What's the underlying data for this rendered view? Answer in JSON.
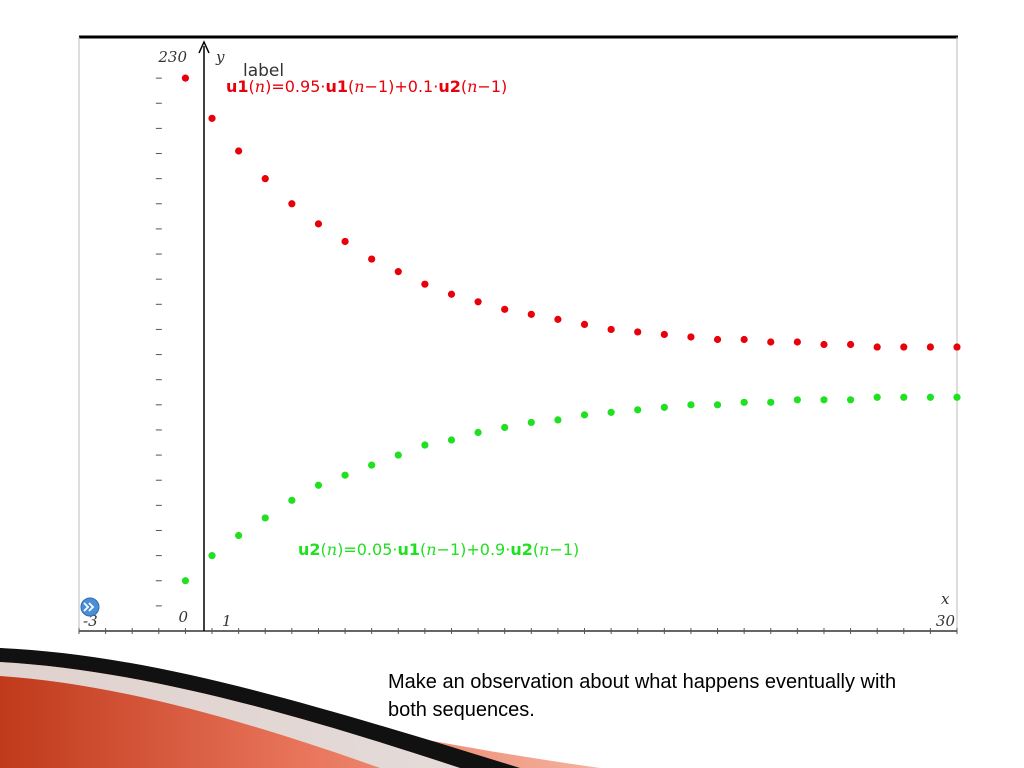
{
  "chart_data": {
    "type": "scatter",
    "x_range": [
      -3,
      30
    ],
    "y_range": [
      0,
      230
    ],
    "x_axis_name": "x",
    "y_axis_name": "y",
    "x_min_label": "-3",
    "x_max_label": "30",
    "y_min_label": "0",
    "y_max_label": "230",
    "x_tick_at_1": "1",
    "series": [
      {
        "label_parts": [
          "u1",
          "(",
          "n",
          ")=0.95·",
          "u1",
          "(",
          "n",
          "−1)+0.1·",
          "u2",
          "(",
          "n",
          "−1)"
        ],
        "color": "#e8000b",
        "x": [
          1,
          2,
          3,
          4,
          5,
          6,
          7,
          8,
          9,
          10,
          11,
          12,
          13,
          14,
          15,
          16,
          17,
          18,
          19,
          20,
          21,
          22,
          23,
          24,
          25,
          26,
          27,
          28,
          29,
          30
        ],
        "values": [
          220,
          204,
          191,
          180,
          170,
          162,
          155,
          148,
          143,
          138,
          134,
          131,
          128,
          126,
          124,
          122,
          120,
          119,
          118,
          117,
          116,
          116,
          115,
          115,
          114,
          114,
          113,
          113,
          113,
          113
        ]
      },
      {
        "label_parts": [
          "u2",
          "(",
          "n",
          ")=0.05·",
          "u1",
          "(",
          "n",
          "−1)+0.9·",
          "u2",
          "(",
          "n",
          "−1)"
        ],
        "color": "#21e021",
        "x": [
          1,
          2,
          3,
          4,
          5,
          6,
          7,
          8,
          9,
          10,
          11,
          12,
          13,
          14,
          15,
          16,
          17,
          18,
          19,
          20,
          21,
          22,
          23,
          24,
          25,
          26,
          27,
          28,
          29,
          30
        ],
        "values": [
          20,
          30,
          38,
          45,
          52,
          58,
          62,
          66,
          70,
          74,
          76,
          79,
          81,
          83,
          84,
          86,
          87,
          88,
          89,
          90,
          90,
          91,
          91,
          92,
          92,
          92,
          93,
          93,
          93,
          93
        ]
      }
    ]
  },
  "tooltip_label": "label",
  "caption": "Make an observation about what happens eventually with both sequences.",
  "colors": {
    "u1": "#e8000b",
    "u2": "#21e021",
    "panel_blue": "#4a8fd6"
  }
}
